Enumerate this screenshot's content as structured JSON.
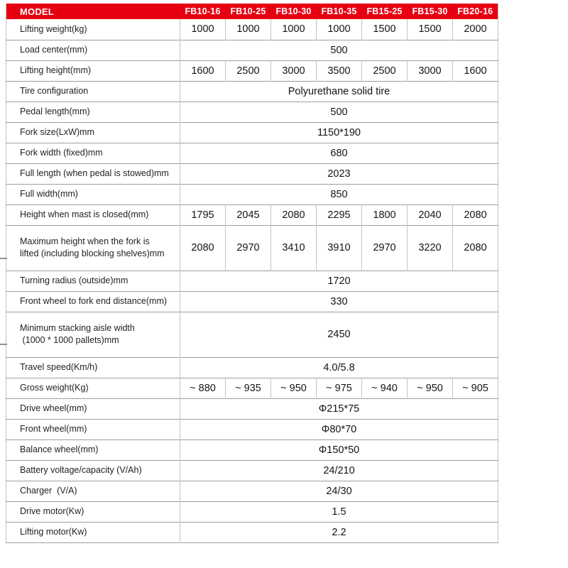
{
  "colors": {
    "header_bg": "#e60012",
    "header_text": "#ffffff",
    "line_horizontal": "#9e9e9e",
    "line_vertical": "#c3c3c3",
    "label_text": "#1f1f1f",
    "value_text": "#141414"
  },
  "table": {
    "header": {
      "label": "MODEL",
      "columns": [
        "FB10-16",
        "FB10-25",
        "FB10-30",
        "FB10-35",
        "FB15-25",
        "FB15-30",
        "FB20-16"
      ]
    },
    "rows": [
      {
        "label": "Lifting weight(kg)",
        "values": [
          "1000",
          "1000",
          "1000",
          "1000",
          "1500",
          "1500",
          "2000"
        ]
      },
      {
        "label": "Load center(mm)",
        "value": "500"
      },
      {
        "label": "Lifting height(mm)",
        "values": [
          "1600",
          "2500",
          "3000",
          "3500",
          "2500",
          "3000",
          "1600"
        ]
      },
      {
        "label": "Tire configuration",
        "value": "Polyurethane solid tire"
      },
      {
        "label": "Pedal length(mm)",
        "value": "500"
      },
      {
        "label": "Fork size(LxW)mm",
        "value": "1150*190"
      },
      {
        "label": "Fork width (fixed)mm",
        "value": "680"
      },
      {
        "label": "Full length (when pedal is stowed)mm",
        "value": "2023"
      },
      {
        "label": "Full width(mm)",
        "value": "850"
      },
      {
        "label": "Height when mast is closed(mm)",
        "values": [
          "1795",
          "2045",
          "2080",
          "2295",
          "1800",
          "2040",
          "2080"
        ]
      },
      {
        "label": "Maximum height when the fork is\nlifted (including blocking shelves)mm",
        "values": [
          "2080",
          "2970",
          "3410",
          "3910",
          "2970",
          "3220",
          "2080"
        ]
      },
      {
        "label": "Turning radius (outside)mm",
        "value": "1720"
      },
      {
        "label": "Front wheel to fork end distance(mm)",
        "value": "330"
      },
      {
        "label": "Minimum stacking aisle width\n (1000 * 1000 pallets)mm",
        "value": "2450"
      },
      {
        "label": "Travel speed(Km/h)",
        "value": "4.0/5.8"
      },
      {
        "label": "Gross weight(Kg)",
        "values": [
          "~ 880",
          "~ 935",
          "~ 950",
          "~ 975",
          "~ 940",
          "~ 950",
          "~ 905"
        ]
      },
      {
        "label": "Drive wheel(mm)",
        "value": "Φ215*75"
      },
      {
        "label": "Front wheel(mm)",
        "value": "Φ80*70"
      },
      {
        "label": "Balance wheel(mm)",
        "value": "Φ150*50"
      },
      {
        "label": "Battery voltage/capacity (V/Ah)",
        "value": "24/210"
      },
      {
        "label": "Charger  (V/A)",
        "value": "24/30"
      },
      {
        "label": "Drive motor(Kw)",
        "value": "1.5"
      },
      {
        "label": "Lifting motor(Kw)",
        "value": "2.2"
      }
    ]
  }
}
